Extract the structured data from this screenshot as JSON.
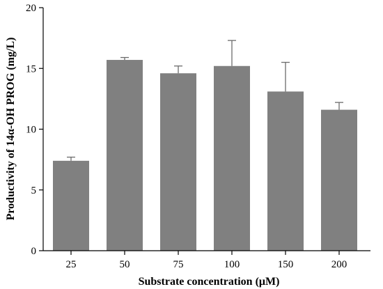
{
  "chart_data": {
    "type": "bar",
    "title": "",
    "xlabel": "Substrate concentration  (μM)",
    "ylabel": "Productivity of 14α-OH PROG (mg/L)",
    "categories": [
      "25",
      "50",
      "75",
      "100",
      "150",
      "200"
    ],
    "values": [
      7.4,
      15.7,
      14.6,
      15.2,
      13.1,
      11.6
    ],
    "errors": [
      0.3,
      0.2,
      0.6,
      2.1,
      2.4,
      0.6
    ],
    "ylim": [
      0,
      20
    ],
    "yticks": [
      "0",
      "5",
      "10",
      "15",
      "20"
    ],
    "bar_color": "#808080",
    "grid": false,
    "legend": "none"
  }
}
